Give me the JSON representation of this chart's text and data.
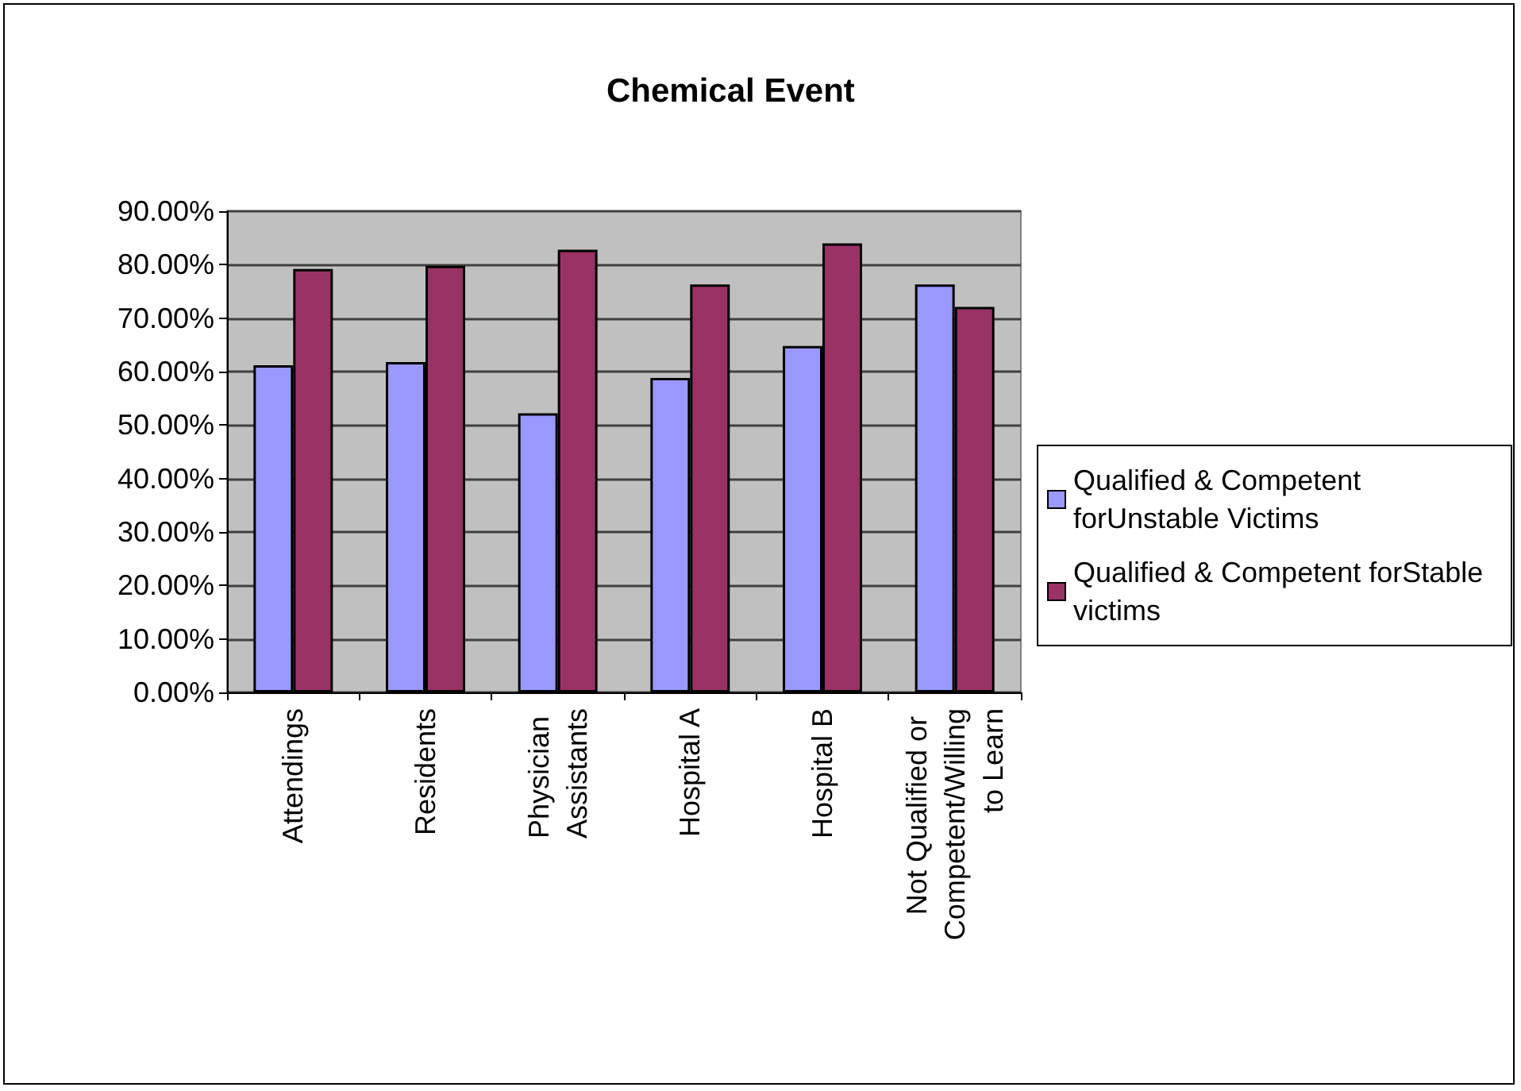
{
  "chart_data": {
    "type": "bar",
    "title": "Chemical Event",
    "categories": [
      "Attendings",
      "Residents",
      "Physician Assistants",
      "Hospital A",
      "Hospital B",
      "Not Qualified or Competent/Willing to Learn"
    ],
    "series": [
      {
        "name": "Qualified & Competent forUnstable Victims",
        "color": "#9999ff",
        "values": [
          61.2,
          61.8,
          52.2,
          58.8,
          64.8,
          76.3
        ]
      },
      {
        "name": "Qualified & Competent forStable victims",
        "color": "#993366",
        "values": [
          79.2,
          79.8,
          82.8,
          76.3,
          84.0,
          72.1
        ]
      }
    ],
    "ylim": [
      0,
      90
    ],
    "yticks": [
      {
        "value": 0,
        "label": "0.00%"
      },
      {
        "value": 10,
        "label": "10.00%"
      },
      {
        "value": 20,
        "label": "20.00%"
      },
      {
        "value": 30,
        "label": "30.00%"
      },
      {
        "value": 40,
        "label": "40.00%"
      },
      {
        "value": 50,
        "label": "50.00%"
      },
      {
        "value": 60,
        "label": "60.00%"
      },
      {
        "value": 70,
        "label": "70.00%"
      },
      {
        "value": 80,
        "label": "80.00%"
      },
      {
        "value": 90,
        "label": "90.00%"
      }
    ],
    "grid": "y",
    "legend": "right"
  }
}
